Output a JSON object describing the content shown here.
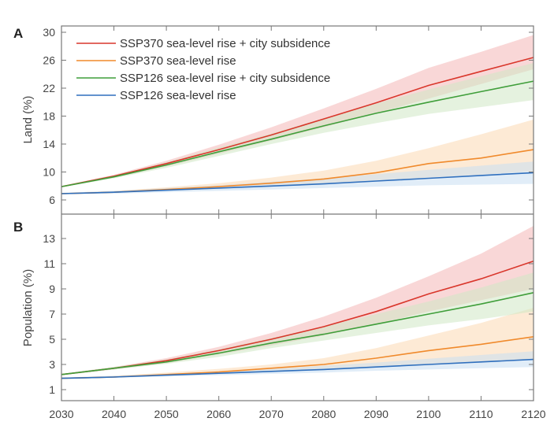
{
  "chart_data": [
    {
      "panel": "A",
      "type": "line",
      "title": "",
      "xlabel": "",
      "ylabel": "Land (%)",
      "xlim": [
        2030,
        2120
      ],
      "ylim": [
        4,
        31
      ],
      "yticks": [
        6,
        10,
        14,
        18,
        22,
        26,
        30
      ],
      "xticks": [
        2030,
        2040,
        2050,
        2060,
        2070,
        2080,
        2090,
        2100,
        2110,
        2120
      ],
      "grid": false,
      "legend_position": "top-left",
      "x": [
        2030,
        2040,
        2050,
        2060,
        2070,
        2080,
        2090,
        2100,
        2110,
        2120
      ],
      "series": [
        {
          "name": "SSP370 sea-level rise + city subsidence",
          "color": "#d9362b",
          "band_color": "#f4b6b6",
          "values": [
            7.9,
            9.4,
            11.2,
            13.2,
            15.3,
            17.6,
            19.9,
            22.4,
            24.4,
            26.4
          ],
          "lower": [
            7.8,
            9.2,
            10.8,
            12.6,
            14.5,
            16.4,
            18.4,
            20.5,
            22.6,
            24.7
          ],
          "upper": [
            8.0,
            9.6,
            11.6,
            13.9,
            16.4,
            19.1,
            21.9,
            24.9,
            27.2,
            29.6
          ]
        },
        {
          "name": "SSP370 sea-level rise",
          "color": "#f08a2c",
          "band_color": "#fbd9b3",
          "values": [
            6.9,
            7.1,
            7.5,
            7.9,
            8.4,
            9.0,
            9.9,
            11.2,
            12.0,
            13.2
          ],
          "lower": [
            6.8,
            7.0,
            7.3,
            7.6,
            7.9,
            8.3,
            8.7,
            9.2,
            9.6,
            10.1
          ],
          "upper": [
            7.0,
            7.3,
            7.8,
            8.4,
            9.2,
            10.2,
            11.6,
            13.4,
            15.4,
            17.5
          ]
        },
        {
          "name": "SSP126 sea-level rise + city subsidence",
          "color": "#3f9e3a",
          "band_color": "#cfe8c4",
          "values": [
            7.9,
            9.3,
            11.0,
            12.9,
            14.7,
            16.6,
            18.4,
            20.0,
            21.5,
            23.0
          ],
          "lower": [
            7.8,
            9.1,
            10.6,
            12.3,
            14.0,
            15.6,
            17.0,
            18.3,
            19.3,
            20.3
          ],
          "upper": [
            8.0,
            9.5,
            11.4,
            13.5,
            15.5,
            17.7,
            19.8,
            21.8,
            23.7,
            25.6
          ]
        },
        {
          "name": "SSP126 sea-level rise",
          "color": "#2f6fbd",
          "band_color": "#c9def2",
          "values": [
            6.9,
            7.1,
            7.4,
            7.7,
            8.0,
            8.3,
            8.7,
            9.1,
            9.5,
            9.9
          ],
          "lower": [
            6.8,
            6.9,
            7.1,
            7.3,
            7.5,
            7.7,
            7.9,
            8.1,
            8.2,
            8.3
          ],
          "upper": [
            7.0,
            7.3,
            7.7,
            8.1,
            8.6,
            9.1,
            9.7,
            10.3,
            10.9,
            11.5
          ]
        }
      ]
    },
    {
      "panel": "B",
      "type": "line",
      "title": "",
      "xlabel": "",
      "ylabel": "Population (%)",
      "xlim": [
        2030,
        2120
      ],
      "ylim": [
        0.1,
        14.9
      ],
      "yticks": [
        1,
        3,
        5,
        7,
        9,
        11,
        13
      ],
      "xticks": [
        2030,
        2040,
        2050,
        2060,
        2070,
        2080,
        2090,
        2100,
        2110,
        2120
      ],
      "xtick_labels": [
        "2030",
        "2040",
        "2050",
        "2060",
        "2070",
        "2080",
        "2090",
        "2100",
        "2110",
        "2120"
      ],
      "grid": false,
      "x": [
        2030,
        2040,
        2050,
        2060,
        2070,
        2080,
        2090,
        2100,
        2110,
        2120
      ],
      "series": [
        {
          "name": "SSP370 sea-level rise + city subsidence",
          "color": "#d9362b",
          "band_color": "#f4b6b6",
          "values": [
            2.2,
            2.7,
            3.3,
            4.1,
            5.0,
            6.0,
            7.2,
            8.6,
            9.8,
            11.2
          ],
          "lower": [
            2.15,
            2.6,
            3.1,
            3.8,
            4.5,
            5.3,
            6.2,
            7.2,
            8.1,
            9.0
          ],
          "upper": [
            2.25,
            2.8,
            3.5,
            4.4,
            5.5,
            6.8,
            8.3,
            10.0,
            11.8,
            14.0
          ]
        },
        {
          "name": "SSP370 sea-level rise",
          "color": "#f08a2c",
          "band_color": "#fbd9b3",
          "values": [
            1.9,
            2.0,
            2.2,
            2.4,
            2.7,
            3.0,
            3.5,
            4.1,
            4.6,
            5.2
          ],
          "lower": [
            1.85,
            1.95,
            2.1,
            2.25,
            2.4,
            2.6,
            2.8,
            3.0,
            3.2,
            3.4
          ],
          "upper": [
            1.95,
            2.1,
            2.35,
            2.65,
            3.0,
            3.5,
            4.3,
            5.3,
            6.3,
            7.5
          ]
        },
        {
          "name": "SSP126 sea-level rise + city subsidence",
          "color": "#3f9e3a",
          "band_color": "#cfe8c4",
          "values": [
            2.2,
            2.7,
            3.2,
            3.9,
            4.7,
            5.4,
            6.2,
            7.0,
            7.8,
            8.7
          ],
          "lower": [
            2.15,
            2.6,
            3.05,
            3.6,
            4.3,
            4.9,
            5.5,
            6.1,
            6.6,
            7.2
          ],
          "upper": [
            2.25,
            2.8,
            3.4,
            4.2,
            5.1,
            6.0,
            7.0,
            8.0,
            9.1,
            10.3
          ]
        },
        {
          "name": "SSP126 sea-level rise",
          "color": "#2f6fbd",
          "band_color": "#c9def2",
          "values": [
            1.9,
            2.0,
            2.15,
            2.3,
            2.45,
            2.6,
            2.8,
            3.0,
            3.2,
            3.4
          ],
          "lower": [
            1.85,
            1.95,
            2.05,
            2.15,
            2.25,
            2.35,
            2.5,
            2.6,
            2.7,
            2.8
          ],
          "upper": [
            1.95,
            2.1,
            2.25,
            2.45,
            2.65,
            2.9,
            3.15,
            3.45,
            3.75,
            4.05
          ]
        }
      ]
    }
  ]
}
